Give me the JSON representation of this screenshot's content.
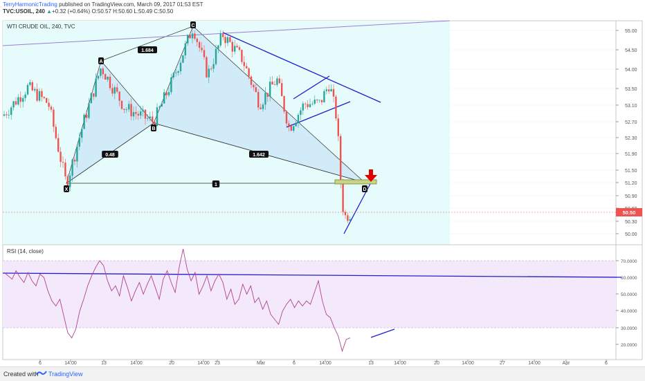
{
  "header": {
    "author": "TerryHarmonicTrading",
    "published_text": " published on TradingView.com, March 09, 2017 01:53 EST",
    "symbol": "TVC:USOIL, 240",
    "change": "+0.32 (+0.64%)",
    "ohlc": "O:50.57 H:50.60 L:50.49 C:50.50",
    "up_arrow": "▲"
  },
  "chart_data": [
    {
      "type": "candlestick",
      "title": "WTI CRUDE OIL, 240, TVC",
      "y_ticks": [
        "55.00",
        "54.50",
        "54.00",
        "53.50",
        "53.10",
        "52.70",
        "52.30",
        "51.90",
        "51.50",
        "51.20",
        "50.90",
        "50.60",
        "50.30",
        "50.00"
      ],
      "last_price": "50.50",
      "x_ticks": [
        "6",
        "14:00",
        "13",
        "14:00",
        "20",
        "14:00",
        "23",
        "Mar",
        "6",
        "14:00",
        "13",
        "14:00",
        "20",
        "14:00",
        "27",
        "14:00",
        "Apr",
        "6"
      ],
      "pattern_labels": [
        "X",
        "A",
        "B",
        "C",
        "D"
      ],
      "pattern_points": {
        "X": 51.2,
        "A": 54.1,
        "B": 52.75,
        "C": 55.1,
        "D": 51.2
      },
      "ratios": [
        "1.684",
        "0.48",
        "1.642",
        "1"
      ],
      "colors": {
        "up": "#26a69a",
        "down": "#ef5350",
        "pattern_fill": "#cde7f7",
        "channel": "#1f1fcf",
        "area": "#e6fbfb"
      }
    },
    {
      "type": "line",
      "title": "RSI (14, close)",
      "y_ticks": [
        "70.0000",
        "60.0000",
        "50.0000",
        "40.0000",
        "30.0000",
        "20.0000"
      ],
      "ylim": [
        15,
        80
      ],
      "values": [
        63,
        61,
        59,
        64,
        60,
        57,
        63,
        58,
        55,
        62,
        60,
        52,
        46,
        43,
        47,
        37,
        27,
        24,
        29,
        40,
        47,
        55,
        61,
        66,
        70,
        67,
        58,
        52,
        55,
        49,
        61,
        54,
        46,
        52,
        57,
        50,
        56,
        61,
        54,
        47,
        59,
        64,
        57,
        51,
        66,
        77,
        65,
        58,
        63,
        50,
        55,
        61,
        52,
        58,
        62,
        57,
        47,
        53,
        44,
        47,
        56,
        50,
        55,
        45,
        48,
        41,
        46,
        38,
        35,
        32,
        40,
        44,
        47,
        42,
        46,
        43,
        46,
        44,
        51,
        58,
        46,
        38,
        36,
        30,
        25,
        16,
        23,
        24
      ],
      "colors": {
        "line": "#b0428f",
        "trend": "#1f1fcf",
        "band": "#f4e8fb"
      }
    }
  ],
  "footer": {
    "created_with": "Created with",
    "brand": "TradingView"
  }
}
